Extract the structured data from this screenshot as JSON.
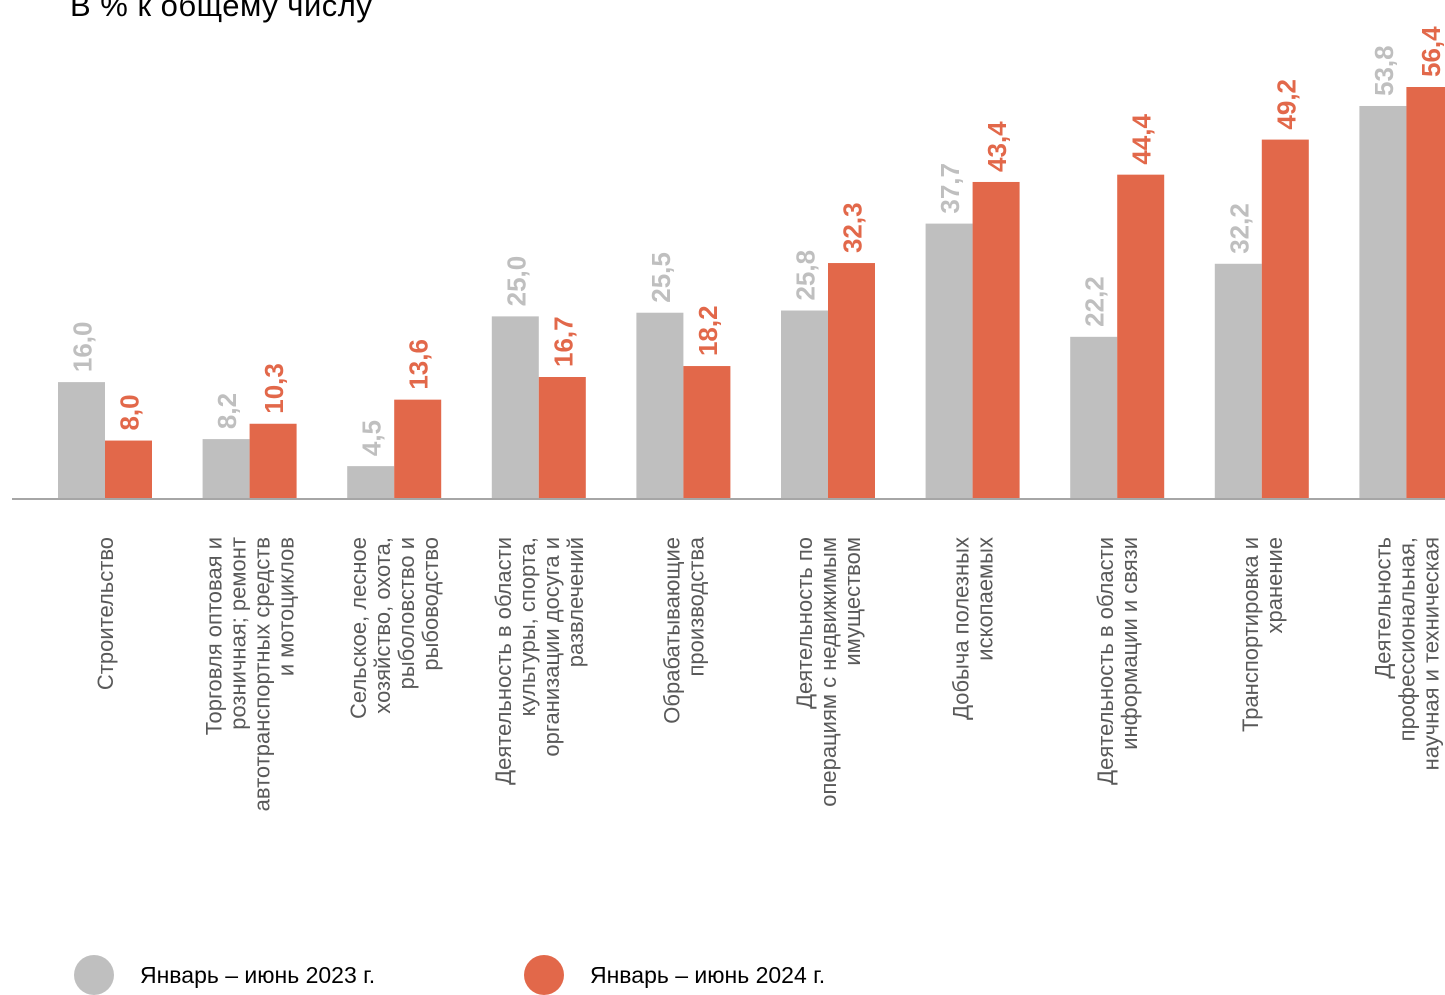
{
  "title": "В % к общему числу",
  "colors": {
    "series1": "#bfbfbf",
    "series2": "#e2684a",
    "label1": "#bfbfbf",
    "label2": "#e2684a",
    "axis": "#a6a6a6",
    "category_text": "#595959"
  },
  "chart_data": {
    "type": "bar",
    "title": "В % к общему числу",
    "categories": [
      [
        "Строительство"
      ],
      [
        "Торговля оптовая и",
        "розничная; ремонт",
        "автотранспортных средств",
        "и мотоциклов"
      ],
      [
        "Сельское, лесное",
        "хозяйство, охота,",
        "рыболовство и",
        "рыбоводство"
      ],
      [
        "Деятельность в области",
        "культуры, спорта,",
        "организации досуга и",
        "развлечений"
      ],
      [
        "Обрабатывающие",
        "производства"
      ],
      [
        "Деятельность по",
        "операциям с недвижимым",
        "имуществом"
      ],
      [
        "Добыча полезных",
        "ископаемых"
      ],
      [
        "Деятельность в области",
        "информации и связи"
      ],
      [
        "Транспортировка и",
        "хранение"
      ],
      [
        "Деятельность",
        "профессиональная,",
        "научная и техническая"
      ]
    ],
    "series": [
      {
        "name": "Январь – июнь 2023 г.",
        "values": [
          16.0,
          8.2,
          4.5,
          25.0,
          25.5,
          25.8,
          37.7,
          22.2,
          32.2,
          53.8
        ],
        "labels": [
          "16,0",
          "8,2",
          "4,5",
          "25,0",
          "25,5",
          "25,8",
          "37,7",
          "22,2",
          "32,2",
          "53,8"
        ]
      },
      {
        "name": "Январь – июнь 2024 г.",
        "values": [
          8.0,
          10.3,
          13.6,
          16.7,
          18.2,
          32.3,
          43.4,
          44.4,
          49.2,
          56.4
        ],
        "labels": [
          "8,0",
          "10,3",
          "13,6",
          "16,7",
          "18,2",
          "32,3",
          "43,4",
          "44,4",
          "49,2",
          "56,4"
        ]
      }
    ],
    "ylim": [
      0,
      56.4
    ],
    "grid": false,
    "legend_position": "bottom-left"
  }
}
